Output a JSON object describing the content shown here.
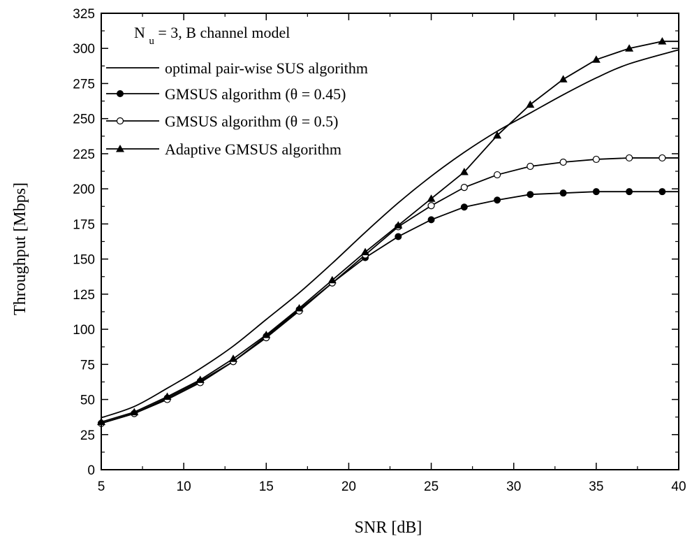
{
  "chart_data": {
    "type": "line",
    "title": "",
    "annotation": {
      "main": "N",
      "sub": "u",
      "rest": " = 3, B channel model"
    },
    "xlabel": "SNR [dB]",
    "ylabel": "Throughput [Mbps]",
    "xlim": [
      5,
      40
    ],
    "ylim": [
      0,
      325
    ],
    "xticks": [
      5,
      10,
      15,
      20,
      25,
      30,
      35,
      40
    ],
    "yticks": [
      0,
      25,
      50,
      75,
      100,
      125,
      150,
      175,
      200,
      225,
      250,
      275,
      300,
      325
    ],
    "grid": false,
    "legend_position": "top-left",
    "series": [
      {
        "name": "optimal pair-wise SUS algorithm",
        "marker": "none",
        "x": [
          5,
          7,
          9,
          11,
          13,
          15,
          17,
          19,
          21,
          23,
          25,
          27,
          29,
          31,
          33,
          35,
          37,
          40
        ],
        "values": [
          37,
          45,
          58,
          72,
          88,
          107,
          126,
          147,
          169,
          190,
          209,
          226,
          241,
          254,
          267,
          279,
          289,
          299
        ]
      },
      {
        "name": "GMSUS algorithm (θ = 0.45)",
        "marker": "filled-circle",
        "x": [
          5,
          7,
          9,
          11,
          13,
          15,
          17,
          19,
          21,
          23,
          25,
          27,
          29,
          31,
          33,
          35,
          37,
          39
        ],
        "values": [
          33,
          40,
          51,
          63,
          77,
          95,
          114,
          133,
          151,
          166,
          178,
          187,
          192,
          196,
          197,
          198,
          198,
          198
        ]
      },
      {
        "name": "GMSUS algorithm (θ = 0.5)",
        "marker": "open-circle",
        "x": [
          5,
          7,
          9,
          11,
          13,
          15,
          17,
          19,
          21,
          23,
          25,
          27,
          29,
          31,
          33,
          35,
          37,
          39
        ],
        "values": [
          33,
          40,
          50,
          62,
          77,
          94,
          113,
          133,
          153,
          173,
          188,
          201,
          210,
          216,
          219,
          221,
          222,
          222
        ]
      },
      {
        "name": "Adaptive GMSUS algorithm",
        "marker": "filled-triangle",
        "x": [
          5,
          7,
          9,
          11,
          13,
          15,
          17,
          19,
          21,
          23,
          25,
          27,
          29,
          31,
          33,
          35,
          37,
          39
        ],
        "values": [
          34,
          41,
          52,
          64,
          79,
          96,
          115,
          135,
          155,
          174,
          193,
          212,
          238,
          260,
          278,
          292,
          300,
          305
        ]
      }
    ]
  }
}
